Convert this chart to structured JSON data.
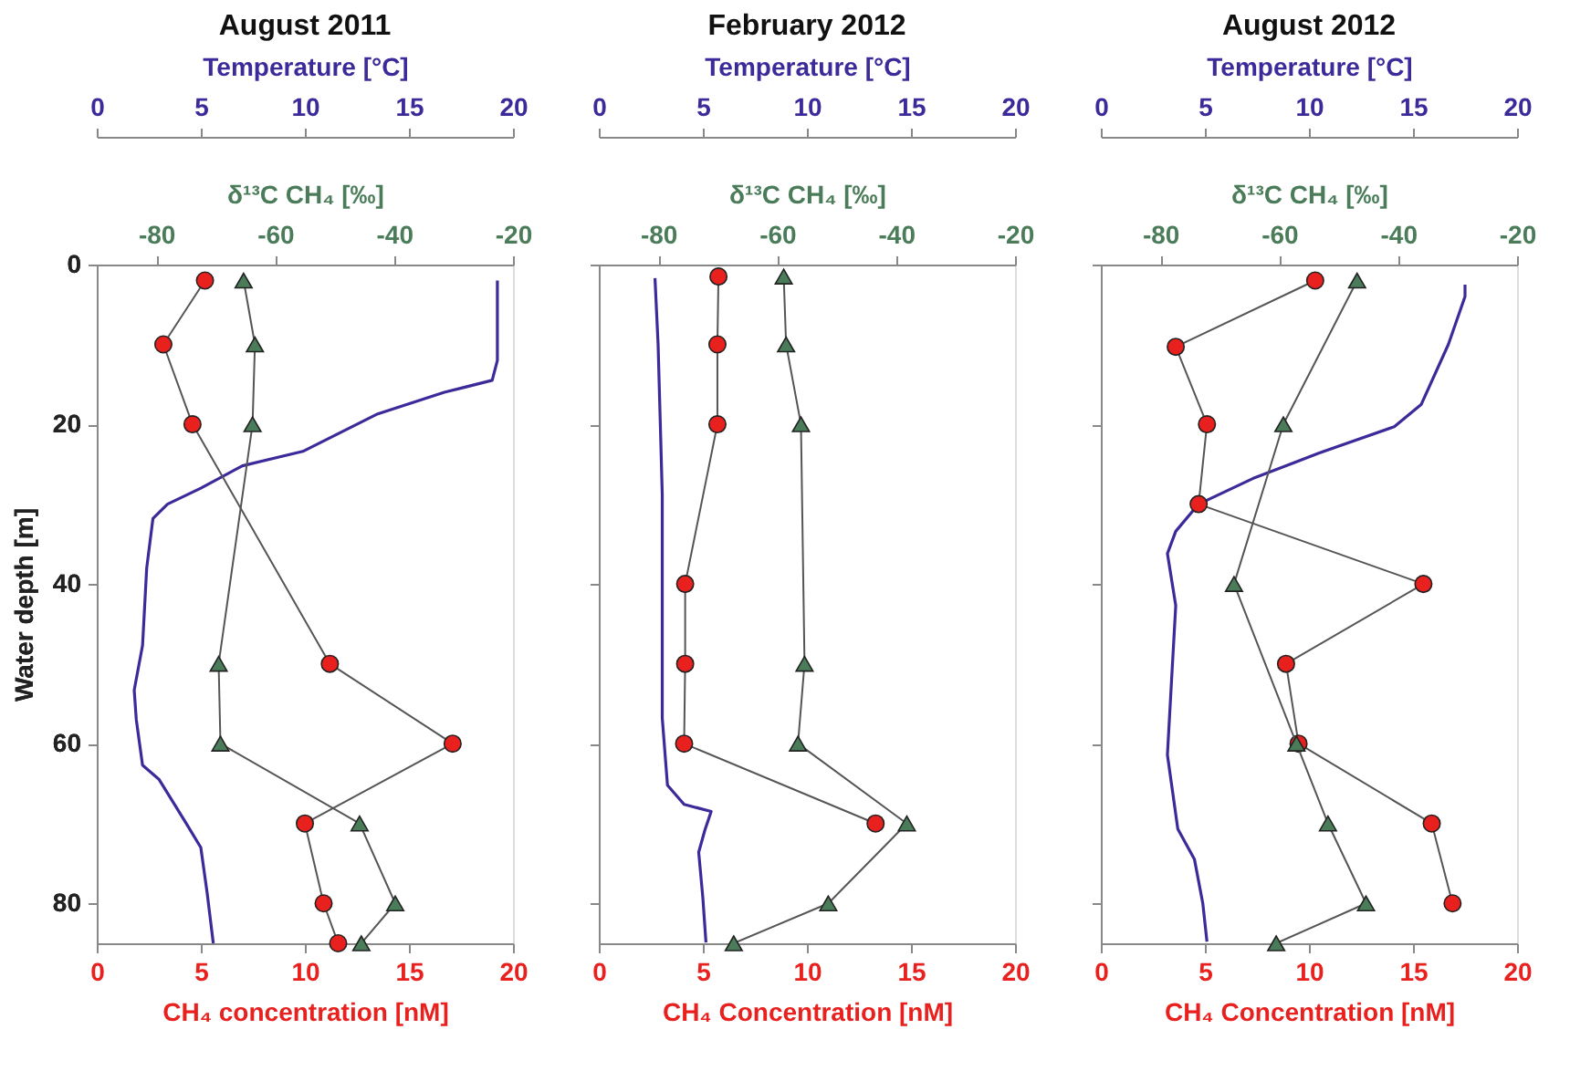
{
  "chart_data": [
    {
      "type": "line",
      "title": "August 2011",
      "xlabel": "CH₄ concentration [nM]",
      "x2label": "Temperature [°C]",
      "ylabel": "Water depth [m]",
      "xlim": [
        0,
        20
      ],
      "xticks": [
        0,
        5,
        10,
        15,
        20
      ],
      "x2lim": [
        0,
        20
      ],
      "x2ticks": [
        0,
        5,
        10,
        15,
        20
      ],
      "ylim": [
        85,
        0
      ],
      "yticks": [
        0,
        20,
        40,
        60,
        80
      ],
      "grid": false,
      "series": [
        {
          "axis": "x2",
          "color": "#3b2a9a",
          "marker": "none",
          "line_style": "solid",
          "x": [
            19.25,
            19.25,
            19.0,
            16.7,
            13.5,
            9.9,
            7.0,
            5.0,
            3.4,
            2.7,
            2.4,
            2.2,
            1.8,
            1.9,
            2.2,
            3.0,
            4.3,
            5.0,
            5.3,
            5.6
          ],
          "values": [
            2,
            12,
            14.5,
            16,
            18.7,
            23.4,
            25.2,
            28,
            30,
            31.8,
            38,
            47.7,
            53.3,
            57,
            62.7,
            64.5,
            70,
            73,
            78.6,
            85
          ]
        },
        {
          "color": "#e8201e",
          "marker": "circle",
          "line_style": "solid",
          "x": [
            5.2,
            3.2,
            4.6,
            11.2,
            17.1,
            10.0,
            10.9,
            11.6
          ],
          "values": [
            2,
            10,
            20,
            50,
            60,
            70,
            80,
            85
          ]
        }
      ]
    },
    {
      "type": "line",
      "xlabel": "δ¹³C CH₄ [‰]",
      "tick_labels": "x",
      "xlim": [
        -90,
        -20
      ],
      "xticks": [
        -80,
        -60,
        -40,
        -20
      ],
      "ylim": [
        85,
        0
      ],
      "yticks": [
        0,
        20,
        40,
        60,
        80
      ],
      "grid": false,
      "series": [
        {
          "color": "#4a7c59",
          "marker": "triangle",
          "line_style": "solid",
          "x": [
            -65.3,
            -63.4,
            -63.8,
            -69.5,
            -69.2,
            -45.8,
            -39.8,
            -45.5
          ],
          "values": [
            2,
            10,
            20,
            50,
            60,
            70,
            80,
            85
          ]
        }
      ]
    },
    {
      "type": "line",
      "title": "February 2012",
      "xlabel": "CH₄ Concentration [nM]",
      "x2label": "Temperature [°C]",
      "tick_labels": "x",
      "xlim": [
        0,
        20
      ],
      "xticks": [
        0,
        5,
        10,
        15,
        20
      ],
      "x2lim": [
        0,
        20
      ],
      "x2ticks": [
        0,
        5,
        10,
        15,
        20
      ],
      "ylim": [
        85,
        0
      ],
      "yticks": [
        0,
        20,
        40,
        60,
        80
      ],
      "grid": false,
      "series": [
        {
          "axis": "x2",
          "color": "#3b2a9a",
          "marker": "none",
          "line_style": "solid",
          "x": [
            2.7,
            2.85,
            3.05,
            3.05,
            3.3,
            4.1,
            5.4,
            5.1,
            4.8,
            5.0,
            5.15
          ],
          "values": [
            1.7,
            10,
            28.8,
            56.8,
            65.2,
            67.6,
            68.5,
            70.8,
            73.6,
            79.3,
            84.9
          ]
        },
        {
          "color": "#e8201e",
          "marker": "circle",
          "line_style": "solid",
          "x": [
            5.75,
            5.7,
            5.7,
            4.15,
            4.15,
            4.1,
            13.3
          ],
          "values": [
            1.5,
            10,
            20,
            40,
            50,
            60,
            70
          ]
        }
      ]
    },
    {
      "type": "line",
      "xlabel": "δ¹³C CH₄ [‰]",
      "tick_labels": "x",
      "xlim": [
        -90,
        -20
      ],
      "xticks": [
        -80,
        -60,
        -40,
        -20
      ],
      "ylim": [
        85,
        0
      ],
      "yticks": [
        0,
        20,
        40,
        60,
        80
      ],
      "grid": false,
      "series": [
        {
          "color": "#4a7c59",
          "marker": "triangle",
          "line_style": "solid",
          "x": [
            -58.9,
            -58.5,
            -56.0,
            -55.4,
            -56.5,
            -38.2,
            -51.4,
            -67.3
          ],
          "values": [
            1.5,
            10,
            20,
            50,
            60,
            70,
            80,
            85
          ]
        }
      ]
    },
    {
      "type": "line",
      "title": "August 2012",
      "xlabel": "CH₄ Concentration [nM]",
      "x2label": "Temperature [°C]",
      "tick_labels": "x",
      "xlim": [
        0,
        20
      ],
      "xticks": [
        0,
        5,
        10,
        15,
        20
      ],
      "x2lim": [
        0,
        20
      ],
      "x2ticks": [
        0,
        5,
        10,
        15,
        20
      ],
      "ylim": [
        85,
        0
      ],
      "yticks": [
        0,
        20,
        40,
        60,
        80
      ],
      "grid": false,
      "series": [
        {
          "axis": "x2",
          "color": "#3b2a9a",
          "marker": "none",
          "line_style": "solid",
          "x": [
            17.5,
            17.5,
            16.7,
            15.4,
            14.1,
            10.5,
            7.3,
            4.7,
            3.6,
            3.2,
            3.6,
            3.4,
            3.2,
            3.7,
            4.5,
            4.9,
            5.1
          ],
          "values": [
            2.5,
            4,
            10,
            17.5,
            20.3,
            23.6,
            26.8,
            30,
            33.4,
            36.2,
            42.7,
            52,
            61.4,
            70.7,
            74.5,
            80,
            84.8
          ]
        },
        {
          "color": "#e8201e",
          "marker": "circle",
          "line_style": "solid",
          "x": [
            10.3,
            3.6,
            5.1,
            4.7,
            15.5,
            8.9,
            9.5,
            15.9,
            16.9
          ],
          "values": [
            2,
            10.3,
            20,
            30,
            40,
            50,
            60,
            70,
            80
          ]
        }
      ]
    },
    {
      "type": "line",
      "xlabel": "δ¹³C CH₄ [‰]",
      "tick_labels": "x",
      "xlim": [
        -90,
        -20
      ],
      "xticks": [
        -80,
        -60,
        -40,
        -20
      ],
      "ylim": [
        85,
        0
      ],
      "yticks": [
        0,
        20,
        40,
        60,
        80
      ],
      "grid": false,
      "series": [
        {
          "color": "#4a7c59",
          "marker": "triangle",
          "line_style": "solid",
          "x": [
            -46.9,
            -59.3,
            -67.6,
            -57.1,
            -51.8,
            -45.4,
            -60.5
          ],
          "values": [
            2,
            20,
            40,
            60,
            70,
            80,
            85
          ]
        }
      ]
    }
  ]
}
